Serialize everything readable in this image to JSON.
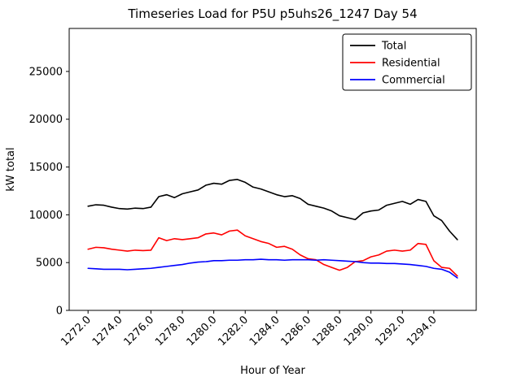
{
  "chart_data": {
    "type": "line",
    "title": "Timeseries Load for P5U p5uhs26_1247  Day 54",
    "xlabel": "Hour of Year",
    "ylabel": "kW total",
    "grid": false,
    "legend_position": "upper right",
    "xlim": [
      1270.8,
      1296.7
    ],
    "ylim": [
      0,
      29500
    ],
    "xticks": [
      1272,
      1274,
      1276,
      1278,
      1280,
      1282,
      1284,
      1286,
      1288,
      1290,
      1292,
      1294
    ],
    "xtick_labels": [
      "1272.0",
      "1274.0",
      "1276.0",
      "1278.0",
      "1280.0",
      "1282.0",
      "1284.0",
      "1286.0",
      "1288.0",
      "1290.0",
      "1292.0",
      "1294.0"
    ],
    "yticks": [
      0,
      5000,
      10000,
      15000,
      20000,
      25000
    ],
    "ytick_labels": [
      "0",
      "5000",
      "10000",
      "15000",
      "20000",
      "25000"
    ],
    "x": [
      1272.0,
      1272.5,
      1273.0,
      1273.5,
      1274.0,
      1274.5,
      1275.0,
      1275.5,
      1276.0,
      1276.5,
      1277.0,
      1277.5,
      1278.0,
      1278.5,
      1279.0,
      1279.5,
      1280.0,
      1280.5,
      1281.0,
      1281.5,
      1282.0,
      1282.5,
      1283.0,
      1283.5,
      1284.0,
      1284.5,
      1285.0,
      1285.5,
      1286.0,
      1286.5,
      1287.0,
      1287.5,
      1288.0,
      1288.5,
      1289.0,
      1289.5,
      1290.0,
      1290.5,
      1291.0,
      1291.5,
      1292.0,
      1292.5,
      1293.0,
      1293.5,
      1294.0,
      1294.5,
      1295.0,
      1295.5
    ],
    "series": [
      {
        "name": "Total",
        "color": "#000000",
        "values": [
          10900,
          11050,
          11000,
          10800,
          10650,
          10600,
          10700,
          10650,
          10800,
          11900,
          12100,
          11800,
          12200,
          12400,
          12600,
          13100,
          13300,
          13200,
          13600,
          13700,
          13400,
          12900,
          12700,
          12400,
          12100,
          11900,
          12000,
          11700,
          11100,
          10900,
          10700,
          10400,
          9900,
          9700,
          9500,
          10200,
          10400,
          10500,
          11000,
          11200,
          11400,
          11100,
          11600,
          11400,
          9900,
          9400,
          8300,
          7400
        ]
      },
      {
        "name": "Residential",
        "color": "#ff0000",
        "values": [
          6400,
          6600,
          6550,
          6400,
          6300,
          6200,
          6300,
          6250,
          6300,
          7600,
          7300,
          7500,
          7400,
          7500,
          7600,
          8000,
          8100,
          7900,
          8300,
          8400,
          7800,
          7500,
          7200,
          7000,
          6600,
          6700,
          6400,
          5800,
          5400,
          5300,
          4800,
          4500,
          4200,
          4500,
          5100,
          5200,
          5600,
          5800,
          6200,
          6300,
          6200,
          6300,
          7000,
          6900,
          5200,
          4500,
          4400,
          3600
        ]
      },
      {
        "name": "Commercial",
        "color": "#0000ff",
        "values": [
          4400,
          4350,
          4300,
          4300,
          4300,
          4250,
          4300,
          4350,
          4400,
          4500,
          4600,
          4700,
          4800,
          4950,
          5050,
          5100,
          5200,
          5200,
          5250,
          5250,
          5300,
          5300,
          5350,
          5300,
          5300,
          5250,
          5300,
          5300,
          5300,
          5250,
          5300,
          5250,
          5200,
          5150,
          5100,
          5000,
          4950,
          4950,
          4900,
          4900,
          4850,
          4800,
          4700,
          4600,
          4400,
          4300,
          4000,
          3400
        ]
      }
    ]
  }
}
